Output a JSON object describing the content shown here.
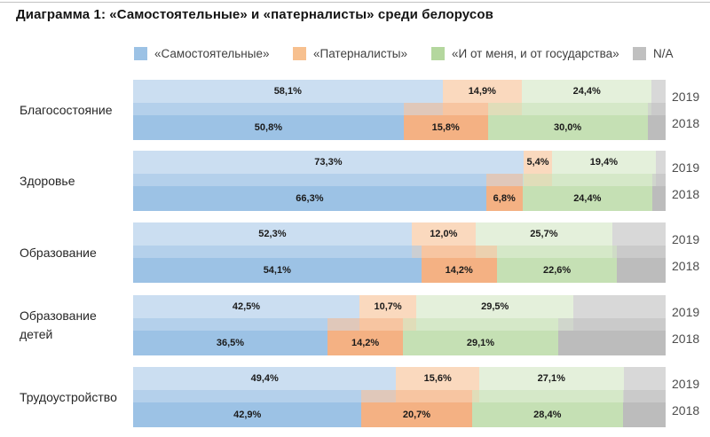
{
  "title": "Диаграмма 1: «Самостоятельные» и «патерналисты» среди белорусов",
  "legend": {
    "items": [
      {
        "label": "«Самостоятельные»",
        "color": "#9CC2E5"
      },
      {
        "label": "«Патерналисты»",
        "color": "#F7C08F"
      },
      {
        "label": "«И от меня, и от государства»",
        "color": "#B4D79E"
      },
      {
        "label": "N/A",
        "color": "#C0C0C0"
      }
    ]
  },
  "chart_data": {
    "type": "bar",
    "orientation": "horizontal",
    "stacked": true,
    "x_range": [
      0,
      100
    ],
    "unit": "%",
    "grid": false,
    "legend_position": "top",
    "series_names": [
      "«Самостоятельные»",
      "«Патерналисты»",
      "«И от меня, и от государства»",
      "N/A"
    ],
    "years": [
      "2019",
      "2018"
    ],
    "colors": {
      "light_2019": [
        "#CBDEF1",
        "#FAD9BE",
        "#E4F0DB",
        "#D8D8D8"
      ],
      "solid_2018": [
        "#9CC2E5",
        "#F4B183",
        "#C5E0B4",
        "#BCBCBC"
      ]
    },
    "categories": [
      "Благосостояние",
      "Здоровье",
      "Образование",
      "Образование детей",
      "Трудоустройство"
    ],
    "groups": [
      {
        "category": "Благосостояние",
        "rows": [
          {
            "year": "2019",
            "values": [
              58.1,
              14.9,
              24.4,
              2.6
            ],
            "labels": [
              "58,1%",
              "14,9%",
              "24,4%",
              ""
            ]
          },
          {
            "year": "2018",
            "values": [
              50.8,
              15.8,
              30.0,
              3.4
            ],
            "labels": [
              "50,8%",
              "15,8%",
              "30,0%",
              ""
            ]
          }
        ]
      },
      {
        "category": "Здоровье",
        "rows": [
          {
            "year": "2019",
            "values": [
              73.3,
              5.4,
              19.4,
              1.9
            ],
            "labels": [
              "73,3%",
              "5,4%",
              "19,4%",
              ""
            ]
          },
          {
            "year": "2018",
            "values": [
              66.3,
              6.8,
              24.4,
              2.5
            ],
            "labels": [
              "66,3%",
              "6,8%",
              "24,4%",
              ""
            ]
          }
        ]
      },
      {
        "category": "Образование",
        "rows": [
          {
            "year": "2019",
            "values": [
              52.3,
              12.0,
              25.7,
              10.0
            ],
            "labels": [
              "52,3%",
              "12,0%",
              "25,7%",
              ""
            ]
          },
          {
            "year": "2018",
            "values": [
              54.1,
              14.2,
              22.6,
              9.1
            ],
            "labels": [
              "54,1%",
              "14,2%",
              "22,6%",
              ""
            ]
          }
        ]
      },
      {
        "category": "Образование детей",
        "rows": [
          {
            "year": "2019",
            "values": [
              42.5,
              10.7,
              29.5,
              17.3
            ],
            "labels": [
              "42,5%",
              "10,7%",
              "29,5%",
              ""
            ]
          },
          {
            "year": "2018",
            "values": [
              36.5,
              14.2,
              29.1,
              20.2
            ],
            "labels": [
              "36,5%",
              "14,2%",
              "29,1%",
              ""
            ]
          }
        ]
      },
      {
        "category": "Трудоустройство",
        "rows": [
          {
            "year": "2019",
            "values": [
              49.4,
              15.6,
              27.1,
              7.9
            ],
            "labels": [
              "49,4%",
              "15,6%",
              "27,1%",
              ""
            ]
          },
          {
            "year": "2018",
            "values": [
              42.9,
              20.7,
              28.4,
              8.0
            ],
            "labels": [
              "42,9%",
              "20,7%",
              "28,4%",
              ""
            ]
          }
        ]
      }
    ]
  }
}
